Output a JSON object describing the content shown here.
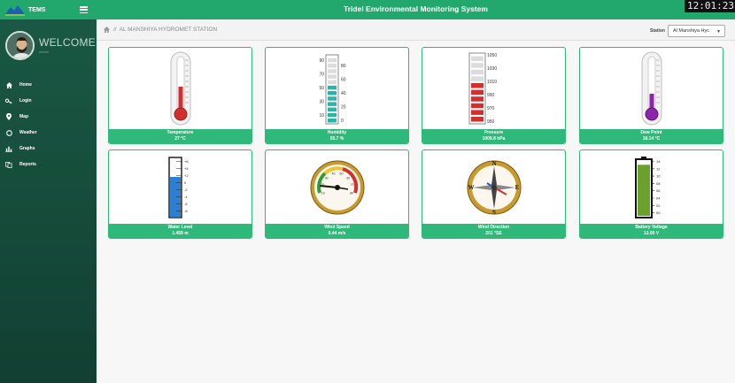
{
  "app": {
    "brand": "TEMS",
    "title": "Tridel Environmental Monitoring System",
    "clock": "12:01:23"
  },
  "sidebar": {
    "welcome": "WELCOME",
    "welcome_sub": "admin",
    "items": [
      {
        "label": "Home"
      },
      {
        "label": "Login"
      },
      {
        "label": "Map"
      },
      {
        "label": "Weather"
      },
      {
        "label": "Graphs"
      },
      {
        "label": "Reports"
      }
    ]
  },
  "breadcrumb": {
    "separator": "//",
    "station_name": "AL MANSHIYA HYDROMET STATION"
  },
  "station_selector": {
    "label": "Station",
    "value": "Al Manshiya Hyc"
  },
  "widgets": [
    {
      "label": "Temperature",
      "value": "27 °C"
    },
    {
      "label": "Humidity",
      "value": "55.7 %"
    },
    {
      "label": "Pressure",
      "value": "1009.8 hPa"
    },
    {
      "label": "Dew Point",
      "value": "18.14 °C"
    },
    {
      "label": "Water Level",
      "value": "1.459 m"
    },
    {
      "label": "Wind Speed",
      "value": "0.44 m/s"
    },
    {
      "label": "Wind Direction",
      "value": "201 °SE"
    },
    {
      "label": "Battery Voltage",
      "value": "13.00 V"
    }
  ],
  "gauges": {
    "humidity_ticks_left": [
      "90",
      "70",
      "50",
      "30",
      "10"
    ],
    "humidity_ticks_right": [
      "80",
      "60",
      "40",
      "20",
      "0"
    ],
    "humidity_level": 0.557,
    "pressure_ticks": [
      "1050",
      "1030",
      "1010",
      "990",
      "970",
      "950"
    ],
    "pressure_level": 0.6,
    "battery_ticks": [
      "14",
      "12",
      "10",
      "08",
      "06",
      "04",
      "02",
      "00"
    ],
    "battery_level": 0.93,
    "water_ticks": [
      "+6",
      "+4",
      "+2",
      "0",
      "-2",
      "-4",
      "-6",
      "-8"
    ],
    "compass_letters": [
      "N",
      "E",
      "S",
      "W"
    ],
    "speed_ticks": [
      "10",
      "20",
      "30",
      "40",
      "50",
      "60",
      "70",
      "80"
    ]
  },
  "colors": {
    "accent": "#22a86d",
    "sidebar": "#1a5a45",
    "card_border": "#2eb87a",
    "teal": "#29b5a8",
    "red": "#d32f2f",
    "purple": "#8e24aa",
    "battery": "#6aa02c"
  }
}
